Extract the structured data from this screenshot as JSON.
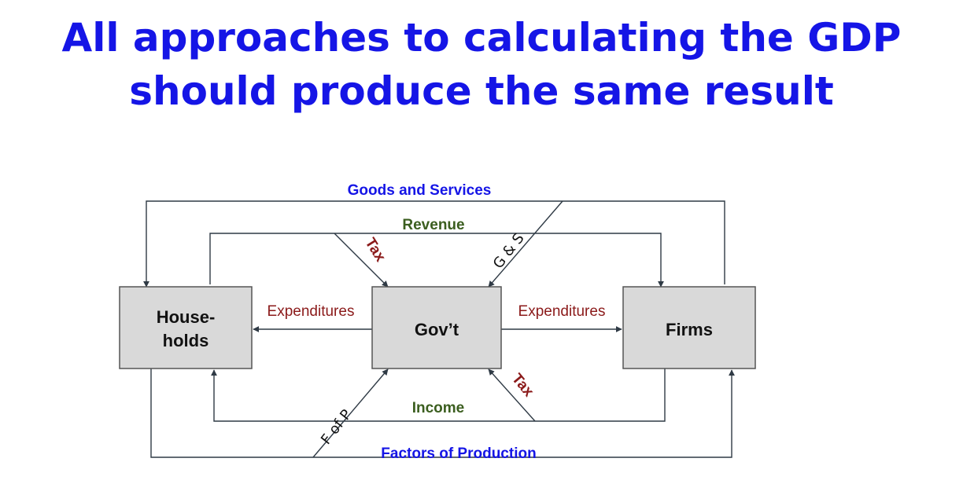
{
  "title": {
    "line1": "All approaches to calculating the GDP",
    "line2": "should produce the same result"
  },
  "colors": {
    "title": "#1515e6",
    "blue_label": "#1515e6",
    "green_label": "#3b5e1f",
    "red_label": "#8b1a1a",
    "box_fill": "#d9d9d9"
  },
  "diagram": {
    "nodes": {
      "households": {
        "line1": "House-",
        "line2": "holds"
      },
      "government": "Gov’t",
      "firms": "Firms"
    },
    "flows": {
      "goods_and_services": "Goods and Services",
      "revenue": "Revenue",
      "income": "Income",
      "factors_of_production": "Factors of Production",
      "expenditures_to_households": "Expenditures",
      "expenditures_to_firms": "Expenditures",
      "tax_from_households": "Tax",
      "tax_from_firms": "Tax",
      "g_and_s": "G & S",
      "f_of_p": "F of P"
    }
  }
}
